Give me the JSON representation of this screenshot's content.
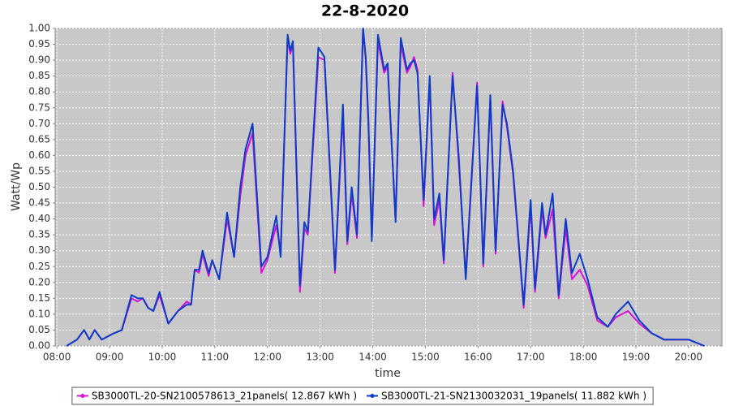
{
  "chart_data": {
    "type": "line",
    "title": "22-8-2020",
    "x_label": "time",
    "y_label": "Watt/Wp",
    "x": [
      "08:11",
      "08:23",
      "08:31",
      "08:37",
      "08:43",
      "08:51",
      "09:05",
      "09:14",
      "09:25",
      "09:32",
      "09:38",
      "09:44",
      "09:50",
      "09:57",
      "10:07",
      "10:18",
      "10:28",
      "10:33",
      "10:37",
      "10:42",
      "10:46",
      "10:53",
      "10:57",
      "11:05",
      "11:14",
      "11:22",
      "11:29",
      "11:35",
      "11:43",
      "11:53",
      "12:00",
      "12:10",
      "12:15",
      "12:23",
      "12:26",
      "12:29",
      "12:37",
      "12:42",
      "12:46",
      "12:58",
      "13:05",
      "13:17",
      "13:26",
      "13:31",
      "13:36",
      "13:42",
      "13:49",
      "13:52",
      "13:55",
      "13:59",
      "14:06",
      "14:13",
      "14:17",
      "14:26",
      "14:32",
      "14:39",
      "14:43",
      "14:47",
      "14:51",
      "14:58",
      "15:05",
      "15:10",
      "15:16",
      "15:21",
      "15:31",
      "15:38",
      "15:46",
      "15:59",
      "16:06",
      "16:14",
      "16:20",
      "16:28",
      "16:33",
      "16:40",
      "16:52",
      "17:00",
      "17:05",
      "17:13",
      "17:17",
      "17:25",
      "17:32",
      "17:40",
      "17:47",
      "17:56",
      "18:05",
      "18:16",
      "18:28",
      "18:37",
      "18:51",
      "19:04",
      "19:18",
      "19:32",
      "19:46",
      "20:00",
      "20:18"
    ],
    "series": [
      {
        "name": "SB3000TL-20-SN2100578613_21panels( 12.867 kWh )",
        "color": "#d810d8",
        "values": [
          0,
          0.02,
          0.05,
          0.02,
          0.05,
          0.02,
          0.04,
          0.05,
          0.15,
          0.14,
          0.15,
          0.12,
          0.11,
          0.16,
          0.07,
          0.11,
          0.14,
          0.13,
          0.24,
          0.23,
          0.29,
          0.22,
          0.27,
          0.21,
          0.4,
          0.28,
          0.47,
          0.6,
          0.67,
          0.23,
          0.27,
          0.38,
          0.3,
          0.97,
          0.92,
          0.95,
          0.17,
          0.37,
          0.35,
          0.91,
          0.9,
          0.23,
          0.73,
          0.32,
          0.48,
          0.34,
          1.0,
          0.9,
          0.7,
          0.34,
          0.96,
          0.86,
          0.88,
          0.4,
          0.95,
          0.86,
          0.88,
          0.91,
          0.87,
          0.44,
          0.84,
          0.38,
          0.46,
          0.26,
          0.86,
          0.58,
          0.22,
          0.83,
          0.25,
          0.78,
          0.29,
          0.77,
          0.69,
          0.54,
          0.12,
          0.44,
          0.17,
          0.43,
          0.34,
          0.43,
          0.15,
          0.37,
          0.21,
          0.24,
          0.19,
          0.08,
          0.06,
          0.09,
          0.11,
          0.07,
          0.04,
          0.02,
          0.02,
          0.02,
          0.0
        ]
      },
      {
        "name": "SB3000TL-21-SN2130032031_19panels( 11.882 kWh )",
        "color": "#0b3cc8",
        "values": [
          0,
          0.02,
          0.05,
          0.02,
          0.05,
          0.02,
          0.04,
          0.05,
          0.16,
          0.15,
          0.15,
          0.12,
          0.11,
          0.17,
          0.07,
          0.11,
          0.13,
          0.13,
          0.24,
          0.24,
          0.3,
          0.23,
          0.27,
          0.21,
          0.42,
          0.28,
          0.5,
          0.62,
          0.7,
          0.25,
          0.28,
          0.41,
          0.28,
          0.98,
          0.93,
          0.96,
          0.19,
          0.39,
          0.36,
          0.94,
          0.91,
          0.24,
          0.76,
          0.33,
          0.5,
          0.35,
          1.0,
          0.91,
          0.72,
          0.33,
          0.98,
          0.87,
          0.89,
          0.39,
          0.97,
          0.87,
          0.89,
          0.9,
          0.86,
          0.46,
          0.85,
          0.4,
          0.48,
          0.27,
          0.85,
          0.6,
          0.21,
          0.82,
          0.26,
          0.79,
          0.3,
          0.76,
          0.7,
          0.55,
          0.13,
          0.46,
          0.18,
          0.45,
          0.35,
          0.48,
          0.16,
          0.4,
          0.23,
          0.29,
          0.21,
          0.09,
          0.06,
          0.1,
          0.14,
          0.08,
          0.04,
          0.02,
          0.02,
          0.02,
          0.0
        ]
      }
    ],
    "xlim": [
      "07:58",
      "20:38"
    ],
    "xticks": [
      "08:00",
      "09:00",
      "10:00",
      "11:00",
      "12:00",
      "13:00",
      "14:00",
      "15:00",
      "16:00",
      "17:00",
      "18:00",
      "19:00",
      "20:00"
    ],
    "ylim": [
      0,
      1
    ],
    "yticks": [
      {
        "value": 0,
        "label": "0.00"
      },
      {
        "value": 0.05,
        "label": "0.05"
      },
      {
        "value": 0.1,
        "label": "0.10"
      },
      {
        "value": 0.15,
        "label": "0.15"
      },
      {
        "value": 0.2,
        "label": "0.20"
      },
      {
        "value": 0.25,
        "label": "0.25"
      },
      {
        "value": 0.3,
        "label": "0.30"
      },
      {
        "value": 0.35,
        "label": "0.35"
      },
      {
        "value": 0.4,
        "label": "0.40"
      },
      {
        "value": 0.45,
        "label": "0.45"
      },
      {
        "value": 0.5,
        "label": "0.50"
      },
      {
        "value": 0.55,
        "label": "0.55"
      },
      {
        "value": 0.6,
        "label": "0.60"
      },
      {
        "value": 0.65,
        "label": "0.65"
      },
      {
        "value": 0.7,
        "label": "0.70"
      },
      {
        "value": 0.75,
        "label": "0.75"
      },
      {
        "value": 0.8,
        "label": "0.80"
      },
      {
        "value": 0.85,
        "label": "0.85"
      },
      {
        "value": 0.9,
        "label": "0.90"
      },
      {
        "value": 0.95,
        "label": "0.95"
      },
      {
        "value": 1,
        "label": "1.00"
      }
    ],
    "grid": true,
    "legend": "bottom"
  }
}
